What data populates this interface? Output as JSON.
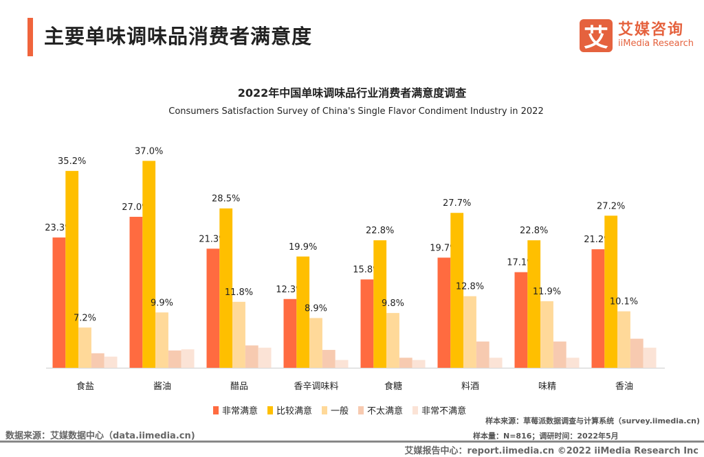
{
  "header": {
    "title": "主要单味调味品消费者满意度"
  },
  "logo": {
    "mark": "艾",
    "cn": "艾媒咨询",
    "en": "iiMedia Research"
  },
  "chart_data": {
    "type": "bar",
    "title": "2022年中国单味调味品行业消费者满意度调查",
    "subtitle": "Consumers Satisfaction Survey of China's Single Flavor Condiment Industry in 2022",
    "categories": [
      "食盐",
      "酱油",
      "醋品",
      "香辛调味料",
      "食糖",
      "料酒",
      "味精",
      "香油"
    ],
    "series": [
      {
        "name": "非常满意",
        "color": "#ff6b40",
        "labeled": true,
        "values": [
          23.3,
          27.0,
          21.3,
          12.3,
          15.8,
          19.7,
          17.1,
          21.2
        ]
      },
      {
        "name": "比较满意",
        "color": "#ffbf00",
        "labeled": true,
        "values": [
          35.2,
          37.0,
          28.5,
          19.9,
          22.8,
          27.7,
          22.8,
          27.2
        ]
      },
      {
        "name": "一般",
        "color": "#ffd999",
        "labeled": true,
        "values": [
          7.2,
          9.9,
          11.8,
          8.9,
          9.8,
          12.8,
          11.9,
          10.1
        ]
      },
      {
        "name": "不太满意",
        "color": "#f7cab0",
        "labeled": false,
        "values": [
          2.6,
          3.1,
          4.0,
          3.2,
          1.8,
          4.7,
          4.7,
          5.2
        ]
      },
      {
        "name": "非常不满意",
        "color": "#fbe3d6",
        "labeled": false,
        "values": [
          2.0,
          3.3,
          3.6,
          1.4,
          1.4,
          1.8,
          1.8,
          3.6
        ]
      }
    ],
    "value_suffix": "%",
    "ylim": [
      0,
      40
    ],
    "grid": false,
    "legend": "bottom"
  },
  "footer": {
    "data_source": "数据来源：艾媒数据中心（data.iimedia.cn)",
    "sample_source": "样本来源：草莓派数据调查与计算系统（survey.iimedia.cn)",
    "sample_info": "样本量：N=816；调研时间：2022年5月",
    "report": "艾媒报告中心：report.iimedia.cn   ©2022  iiMedia Research  Inc"
  }
}
